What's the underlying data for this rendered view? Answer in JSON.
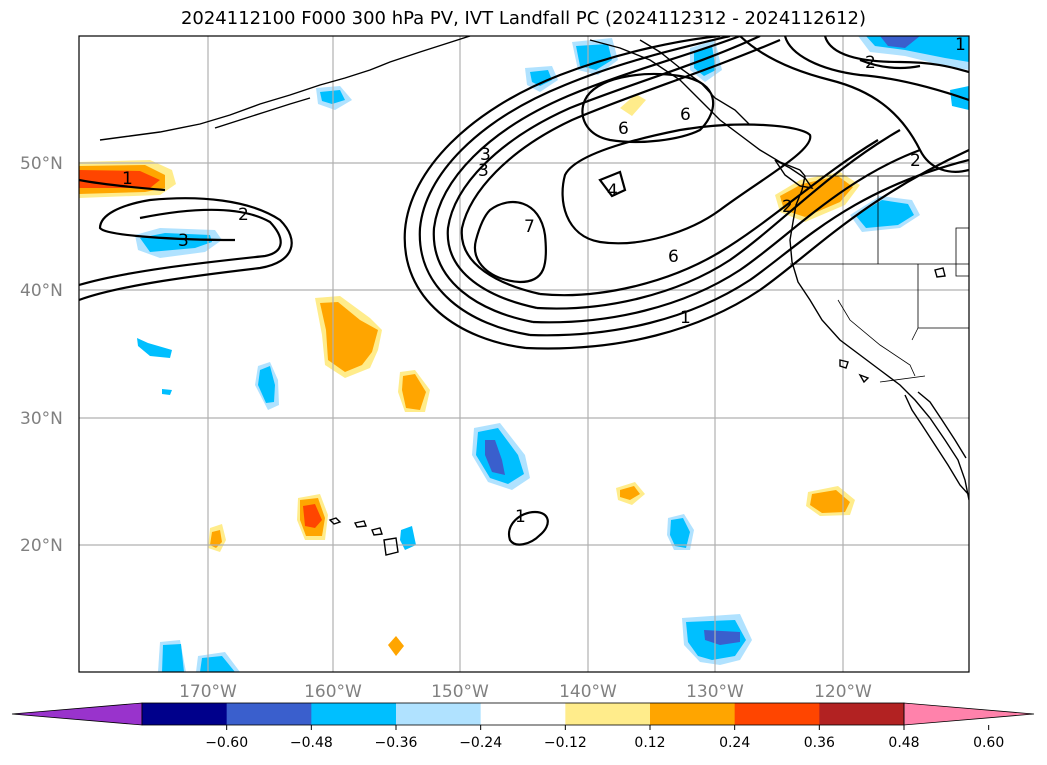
{
  "title": "2024112100 F000 300 hPa PV, IVT Landfall PC (2024112312 - 2024112612)",
  "map": {
    "lat_labels": [
      "50°N",
      "40°N",
      "30°N",
      "20°N"
    ],
    "lon_labels": [
      "170°W",
      "160°W",
      "150°W",
      "140°W",
      "130°W",
      "120°W"
    ]
  },
  "contour_labels": [
    "1",
    "2",
    "3",
    "3",
    "3",
    "6",
    "4",
    "7",
    "6",
    "1",
    "6",
    "2",
    "1",
    "2",
    "1",
    "2"
  ],
  "colorbar": {
    "colors": [
      "#9933cc",
      "#00008b",
      "#3a5fcd",
      "#00bfff",
      "#b0e2ff",
      "#ffffff",
      "#ffec8b",
      "#ffa500",
      "#ff4500",
      "#b22222",
      "#ff82ab"
    ],
    "tick_labels": [
      "−0.60",
      "−0.48",
      "−0.36",
      "−0.24",
      "−0.12",
      "0.12",
      "0.24",
      "0.36",
      "0.48",
      "0.60"
    ]
  }
}
